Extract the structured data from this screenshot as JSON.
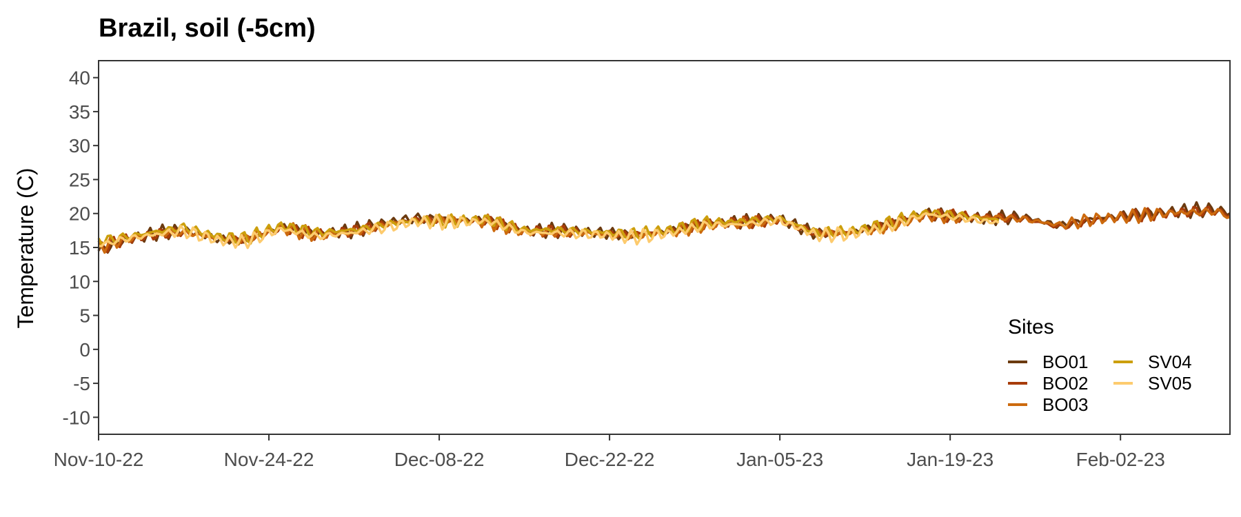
{
  "chart_data": {
    "type": "line",
    "title": "Brazil, soil (-5cm)",
    "xlabel": "",
    "ylabel": "Temperature (C)",
    "ylim": [
      -12.5,
      42.5
    ],
    "yticks": [
      "-10",
      "-5",
      "0",
      "5",
      "10",
      "15",
      "20",
      "25",
      "30",
      "35",
      "40"
    ],
    "xlim": [
      "2022-11-10",
      "2023-02-11"
    ],
    "xticks": [
      {
        "date": "2022-11-10",
        "label": "Nov-10-22"
      },
      {
        "date": "2022-11-24",
        "label": "Nov-24-22"
      },
      {
        "date": "2022-12-08",
        "label": "Dec-08-22"
      },
      {
        "date": "2022-12-22",
        "label": "Dec-22-22"
      },
      {
        "date": "2023-01-05",
        "label": "Jan-05-23"
      },
      {
        "date": "2023-01-19",
        "label": "Jan-19-23"
      },
      {
        "date": "2023-02-02",
        "label": "Feb-02-23"
      }
    ],
    "grid": false,
    "legend": {
      "title": "Sites",
      "position": "bottom-right",
      "columns": 2
    },
    "series": [
      {
        "name": "BO01",
        "color": "#6b3a0f",
        "x": [
          "2022-11-10",
          "2022-11-12",
          "2022-11-15",
          "2022-11-17",
          "2022-11-20",
          "2022-11-22",
          "2022-11-25",
          "2022-11-28",
          "2022-12-01",
          "2022-12-04",
          "2022-12-06",
          "2022-12-09",
          "2022-12-12",
          "2022-12-15",
          "2022-12-18",
          "2022-12-21",
          "2022-12-24",
          "2022-12-27",
          "2022-12-30",
          "2023-01-02",
          "2023-01-05",
          "2023-01-08",
          "2023-01-11",
          "2023-01-14",
          "2023-01-17",
          "2023-01-20",
          "2023-01-22",
          "2023-01-25",
          "2023-01-28",
          "2023-01-31",
          "2023-02-03",
          "2023-02-06",
          "2023-02-08",
          "2023-02-10",
          "2023-02-11"
        ],
        "y": [
          14.5,
          16.0,
          17.2,
          17.5,
          16.2,
          16.0,
          18.0,
          17.0,
          17.5,
          18.8,
          19.3,
          19.2,
          19.0,
          17.5,
          17.5,
          17.2,
          16.8,
          17.5,
          18.6,
          18.8,
          19.2,
          17.0,
          17.3,
          18.5,
          20.0,
          19.5,
          19.3,
          19.5,
          18.2,
          19.3,
          19.8,
          20.2,
          20.5,
          20.6,
          20.0
        ]
      },
      {
        "name": "BO02",
        "color": "#a83c09",
        "x": [
          "2022-11-10",
          "2022-11-12",
          "2022-11-15",
          "2022-11-17",
          "2022-11-20",
          "2022-11-22",
          "2022-11-25",
          "2022-11-28",
          "2022-12-01",
          "2022-12-04",
          "2022-12-06",
          "2022-12-09",
          "2022-12-12",
          "2022-12-15",
          "2022-12-18",
          "2022-12-21",
          "2022-12-24",
          "2022-12-27",
          "2022-12-30",
          "2023-01-02",
          "2023-01-05",
          "2023-01-08",
          "2023-01-11",
          "2023-01-14",
          "2023-01-17",
          "2023-01-20",
          "2023-01-22",
          "2023-01-25",
          "2023-01-28",
          "2023-01-31",
          "2023-02-03",
          "2023-02-06",
          "2023-02-08",
          "2023-02-10",
          "2023-02-11"
        ],
        "y": [
          14.8,
          16.1,
          17.0,
          17.3,
          16.4,
          16.1,
          17.8,
          16.9,
          17.4,
          18.6,
          19.1,
          19.0,
          18.9,
          17.4,
          17.4,
          17.1,
          16.9,
          17.4,
          18.5,
          18.7,
          19.0,
          17.1,
          17.2,
          18.4,
          19.8,
          19.6,
          19.4,
          19.3,
          18.0,
          19.1,
          19.7,
          20.0,
          20.3,
          20.4,
          19.6
        ]
      },
      {
        "name": "BO03",
        "color": "#cc6a0e",
        "x": [
          "2022-11-10",
          "2022-11-12",
          "2022-11-15",
          "2022-11-17",
          "2022-11-20",
          "2022-11-22",
          "2022-11-25",
          "2022-11-28",
          "2022-12-01",
          "2022-12-04",
          "2022-12-06",
          "2022-12-09",
          "2022-12-12",
          "2022-12-15",
          "2022-12-18",
          "2022-12-21",
          "2022-12-24",
          "2022-12-27",
          "2022-12-30",
          "2023-01-02",
          "2023-01-05",
          "2023-01-08",
          "2023-01-11",
          "2023-01-14",
          "2023-01-17",
          "2023-01-20",
          "2023-01-22",
          "2023-01-25",
          "2023-01-28",
          "2023-01-31",
          "2023-02-03",
          "2023-02-06",
          "2023-02-08",
          "2023-02-10",
          "2023-02-11"
        ],
        "y": [
          15.0,
          16.2,
          17.1,
          17.2,
          16.3,
          16.2,
          17.9,
          16.8,
          17.3,
          18.5,
          19.0,
          19.1,
          18.8,
          17.3,
          17.3,
          17.0,
          16.7,
          17.3,
          18.4,
          18.6,
          19.1,
          17.2,
          17.1,
          18.3,
          19.7,
          19.4,
          19.5,
          19.2,
          18.3,
          19.2,
          19.6,
          20.1,
          20.2,
          20.3,
          19.4
        ]
      },
      {
        "name": "SV04",
        "color": "#cc9f0c",
        "x": [
          "2022-11-10",
          "2022-11-12",
          "2022-11-15",
          "2022-11-17",
          "2022-11-20",
          "2022-11-22",
          "2022-11-25",
          "2022-11-28",
          "2022-12-01",
          "2022-12-04",
          "2022-12-06",
          "2022-12-09",
          "2022-12-12",
          "2022-12-15",
          "2022-12-18",
          "2022-12-21",
          "2022-12-24",
          "2022-12-27",
          "2022-12-30",
          "2023-01-02",
          "2023-01-05",
          "2023-01-08",
          "2023-01-11",
          "2023-01-14",
          "2023-01-17",
          "2023-01-20",
          "2023-01-23"
        ],
        "y": [
          16.0,
          16.5,
          17.4,
          18.0,
          16.6,
          16.3,
          18.2,
          17.2,
          17.6,
          18.5,
          19.0,
          18.9,
          19.1,
          17.6,
          17.6,
          17.3,
          17.0,
          17.6,
          18.7,
          18.9,
          19.3,
          17.2,
          17.4,
          18.6,
          20.2,
          19.7,
          19.0
        ]
      },
      {
        "name": "SV05",
        "color": "#fdcb6e",
        "x": [
          "2022-11-10",
          "2022-11-12",
          "2022-11-15",
          "2022-11-17",
          "2022-11-20",
          "2022-11-22",
          "2022-11-25",
          "2022-11-28",
          "2022-12-01",
          "2022-12-04",
          "2022-12-06",
          "2022-12-09",
          "2022-12-12",
          "2022-12-15",
          "2022-12-18",
          "2022-12-21",
          "2022-12-24",
          "2022-12-27",
          "2022-12-30",
          "2023-01-02",
          "2023-01-05",
          "2023-01-08",
          "2023-01-11",
          "2023-01-14",
          "2023-01-17",
          "2023-01-20",
          "2023-01-23"
        ],
        "y": [
          15.3,
          16.2,
          17.0,
          17.4,
          16.0,
          15.8,
          17.7,
          16.6,
          17.2,
          18.1,
          18.8,
          18.7,
          18.9,
          17.2,
          17.1,
          16.9,
          16.5,
          17.1,
          18.3,
          18.4,
          19.0,
          16.8,
          17.0,
          18.1,
          19.9,
          19.3,
          18.6
        ]
      }
    ]
  }
}
